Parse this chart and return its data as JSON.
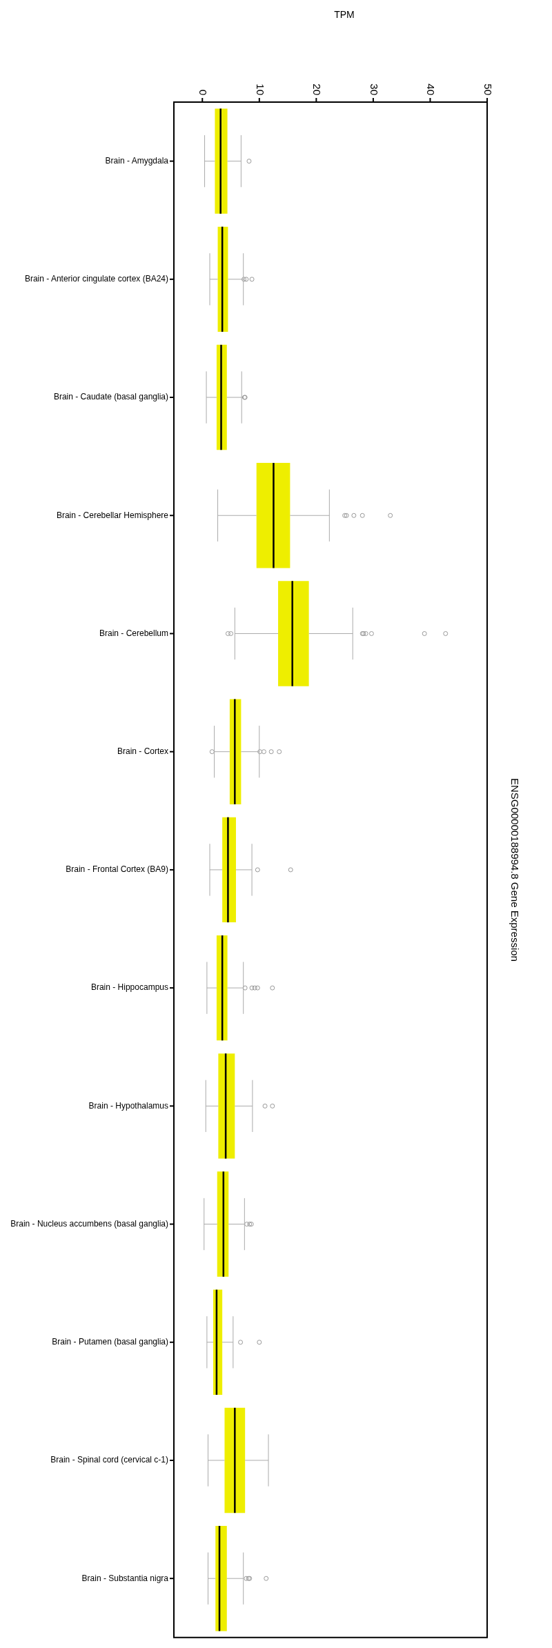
{
  "chart_data": {
    "type": "box",
    "orientation": "horizontal",
    "title": "ENSG00000188994.8 Gene Expression",
    "annotations": [
      "TPM"
    ],
    "color": "#eeee00",
    "categories": [
      "Brain - Amygdala",
      "Brain - Anterior cingulate cortex (BA24)",
      "Brain - Caudate (basal ganglia)",
      "Brain - Cerebellar Hemisphere",
      "Brain - Cerebellum",
      "Brain - Cortex",
      "Brain - Frontal Cortex (BA9)",
      "Brain - Hippocampus",
      "Brain - Hypothalamus",
      "Brain - Nucleus accumbens (basal ganglia)",
      "Brain - Putamen (basal ganglia)",
      "Brain - Spinal cord (cervical c-1)",
      "Brain - Substantia nigra"
    ],
    "boxes": [
      {
        "low": 0.4,
        "q1": 2.2,
        "median": 3.2,
        "q3": 4.4,
        "high": 6.8,
        "outliers": [
          8.2
        ]
      },
      {
        "low": 1.3,
        "q1": 2.7,
        "median": 3.5,
        "q3": 4.5,
        "high": 7.2,
        "outliers": [
          7.3,
          7.7,
          8.7
        ]
      },
      {
        "low": 0.7,
        "q1": 2.5,
        "median": 3.3,
        "q3": 4.3,
        "high": 6.9,
        "outliers": [
          7.4,
          7.5
        ]
      },
      {
        "low": 2.7,
        "q1": 9.5,
        "median": 12.5,
        "q3": 15.4,
        "high": 22.3,
        "outliers": [
          25.0,
          25.3,
          26.6,
          28.1,
          33.0
        ]
      },
      {
        "low": 5.7,
        "q1": 13.3,
        "median": 15.8,
        "q3": 18.7,
        "high": 26.4,
        "outliers": [
          4.5,
          5.0,
          28.1,
          28.3,
          28.7,
          29.7,
          39.0,
          42.7
        ]
      },
      {
        "low": 2.1,
        "q1": 4.8,
        "median": 5.7,
        "q3": 6.8,
        "high": 10.0,
        "outliers": [
          1.7,
          10.1,
          10.8,
          12.1,
          13.5
        ]
      },
      {
        "low": 1.3,
        "q1": 3.5,
        "median": 4.5,
        "q3": 5.9,
        "high": 8.7,
        "outliers": [
          9.7,
          15.5
        ]
      },
      {
        "low": 0.8,
        "q1": 2.5,
        "median": 3.5,
        "q3": 4.4,
        "high": 7.2,
        "outliers": [
          7.5,
          8.7,
          9.2,
          9.7,
          12.3
        ]
      },
      {
        "low": 0.6,
        "q1": 2.8,
        "median": 4.1,
        "q3": 5.7,
        "high": 8.8,
        "outliers": [
          11.0,
          12.3
        ]
      },
      {
        "low": 0.3,
        "q1": 2.6,
        "median": 3.7,
        "q3": 4.6,
        "high": 7.4,
        "outliers": [
          7.8,
          8.3,
          8.6
        ]
      },
      {
        "low": 0.8,
        "q1": 1.9,
        "median": 2.5,
        "q3": 3.5,
        "high": 5.4,
        "outliers": [
          6.7,
          10.0
        ]
      },
      {
        "low": 1.0,
        "q1": 3.9,
        "median": 5.7,
        "q3": 7.5,
        "high": 11.6
      },
      {
        "low": 1.0,
        "q1": 2.3,
        "median": 3.0,
        "q3": 4.3,
        "high": 7.2,
        "outliers": [
          7.7,
          8.1,
          8.3,
          11.2
        ]
      }
    ],
    "xlim": [
      -5,
      50
    ],
    "xticks": [
      0,
      10,
      20,
      30,
      40,
      50
    ]
  }
}
